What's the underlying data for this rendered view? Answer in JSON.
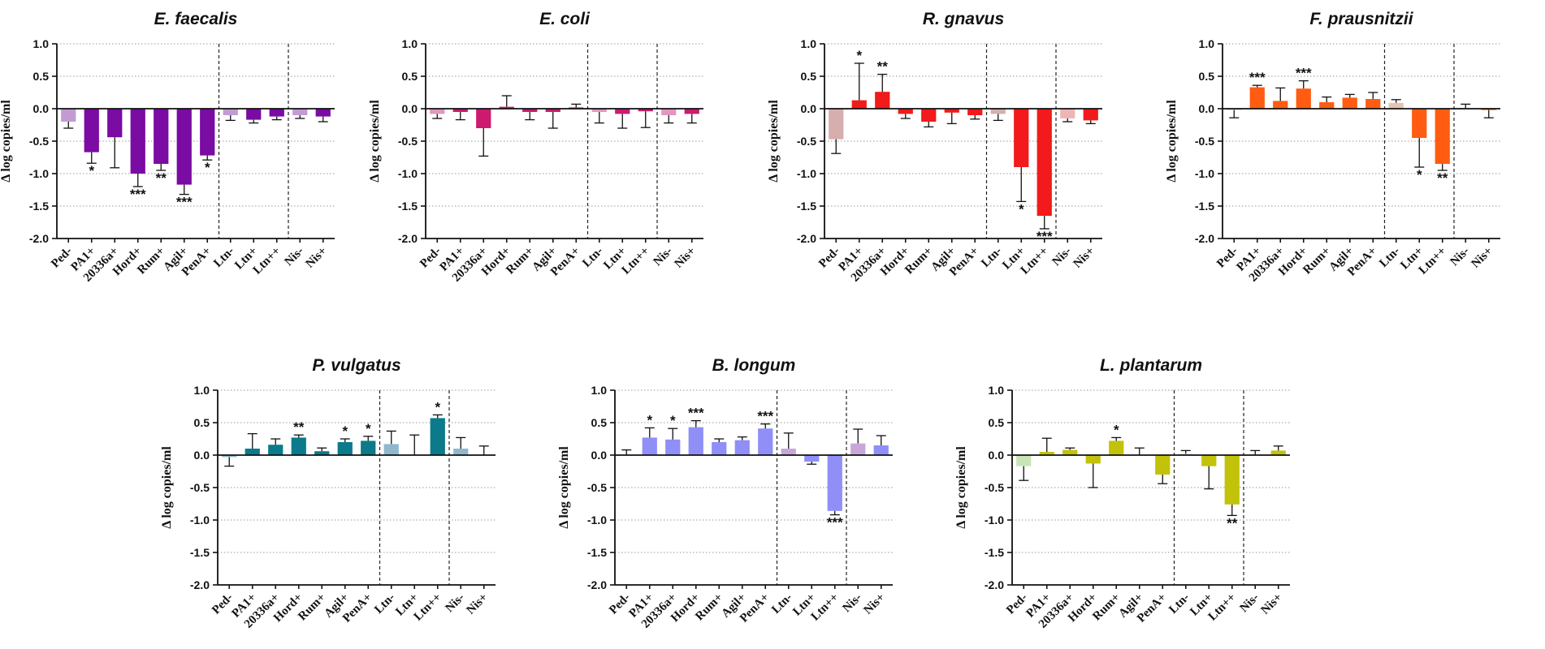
{
  "chart_data": [
    {
      "type": "bar",
      "title": "E. faecalis",
      "ylabel": "Δ log copies/ml",
      "ylim": [
        -2.0,
        1.0
      ],
      "yticks": [
        "1.0",
        "0.5",
        "0.0",
        "-0.5",
        "-1.0",
        "-1.5",
        "-2.0"
      ],
      "grid": true,
      "categories": [
        "Ped-",
        "PA1+",
        "20336a+",
        "Hord+",
        "Rum+",
        "Agil+",
        "PenA+",
        "Ltn-",
        "Ltn+",
        "Ltn++",
        "Nis-",
        "Nis+"
      ],
      "values": [
        -0.2,
        -0.67,
        -0.44,
        -1.0,
        -0.85,
        -1.17,
        -0.72,
        -0.1,
        -0.17,
        -0.12,
        -0.1,
        -0.12
      ],
      "errors": [
        0.1,
        0.17,
        0.47,
        0.2,
        0.1,
        0.15,
        0.07,
        0.08,
        0.05,
        0.05,
        0.05,
        0.08
      ],
      "significance": [
        "",
        "*",
        "",
        "***",
        "**",
        "***",
        "*",
        "",
        "",
        "",
        "",
        ""
      ],
      "colors": [
        "#c39bd3",
        "#7a0ba3",
        "#7a0ba3",
        "#7a0ba3",
        "#7a0ba3",
        "#7a0ba3",
        "#7a0ba3",
        "#c39bd3",
        "#7a0ba3",
        "#7a0ba3",
        "#c39bd3",
        "#7a0ba3"
      ],
      "separators_after": [
        "PenA+",
        "Ltn++"
      ]
    },
    {
      "type": "bar",
      "title": "E. coli",
      "ylabel": "Δ log copies/ml",
      "ylim": [
        -2.0,
        1.0
      ],
      "yticks": [
        "1.0",
        "0.5",
        "0.0",
        "-0.5",
        "-1.0",
        "-1.5",
        "-2.0"
      ],
      "grid": true,
      "categories": [
        "Ped-",
        "PA1+",
        "20336a+",
        "Hord+",
        "Rum+",
        "Agil+",
        "PenA+",
        "Ltn-",
        "Ltn+",
        "Ltn++",
        "Nis-",
        "Nis+"
      ],
      "values": [
        -0.08,
        -0.05,
        -0.3,
        0.03,
        -0.05,
        -0.05,
        0.02,
        -0.05,
        -0.08,
        -0.04,
        -0.1,
        -0.08
      ],
      "errors": [
        0.07,
        0.12,
        0.43,
        0.17,
        0.12,
        0.25,
        0.05,
        0.17,
        0.22,
        0.25,
        0.12,
        0.14
      ],
      "significance": [
        "",
        "",
        "",
        "",
        "",
        "",
        "",
        "",
        "",
        "",
        "",
        ""
      ],
      "colors": [
        "#e098bf",
        "#cc1b6e",
        "#cc1b6e",
        "#cc1b6e",
        "#cc1b6e",
        "#cc1b6e",
        "#cc1b6e",
        "#e098bf",
        "#cc1b6e",
        "#cc1b6e",
        "#e098bf",
        "#cc1b6e"
      ],
      "separators_after": [
        "PenA+",
        "Ltn++"
      ]
    },
    {
      "type": "bar",
      "title": "R. gnavus",
      "ylabel": "Δ log copies/ml",
      "ylim": [
        -2.0,
        1.0
      ],
      "yticks": [
        "1.0",
        "0.5",
        "0.0",
        "-0.5",
        "-1.0",
        "-1.5",
        "-2.0"
      ],
      "grid": true,
      "categories": [
        "Ped-",
        "PA1+",
        "20336a+",
        "Hord+",
        "Rum+",
        "Agil+",
        "PenA+",
        "Ltn-",
        "Ltn+",
        "Ltn++",
        "Nis-",
        "Nis+"
      ],
      "values": [
        -0.47,
        0.13,
        0.26,
        -0.08,
        -0.2,
        -0.06,
        -0.1,
        -0.08,
        -0.9,
        -1.65,
        -0.15,
        -0.18
      ],
      "errors": [
        0.22,
        0.57,
        0.27,
        0.07,
        0.08,
        0.17,
        0.06,
        0.1,
        0.53,
        0.2,
        0.05,
        0.05
      ],
      "significance": [
        "",
        "*",
        "**",
        "",
        "",
        "",
        "",
        "",
        "*",
        "***",
        "",
        ""
      ],
      "colors": [
        "#d6aeae",
        "#f21a1a",
        "#f21a1a",
        "#f21a1a",
        "#f21a1a",
        "#f21a1a",
        "#f21a1a",
        "#d6aeae",
        "#f21a1a",
        "#f21a1a",
        "#efb5b5",
        "#f21a1a"
      ],
      "separators_after": [
        "PenA+",
        "Ltn++"
      ]
    },
    {
      "type": "bar",
      "title": "F. prausnitzii",
      "ylabel": "Δ log copies/ml",
      "ylim": [
        -2.0,
        1.0
      ],
      "yticks": [
        "1.0",
        "0.5",
        "0.0",
        "-0.5",
        "-1.0",
        "-1.5",
        "-2.0"
      ],
      "grid": true,
      "categories": [
        "Ped-",
        "PA1+",
        "20336a+",
        "Hord+",
        "Rum+",
        "Agil+",
        "PenA+",
        "Ltn-",
        "Ltn+",
        "Ltn++",
        "Nis-",
        "Nis+"
      ],
      "values": [
        -0.02,
        0.33,
        0.12,
        0.31,
        0.1,
        0.17,
        0.15,
        0.09,
        -0.45,
        -0.85,
        0.01,
        -0.02
      ],
      "errors": [
        0.12,
        0.03,
        0.2,
        0.12,
        0.08,
        0.05,
        0.1,
        0.05,
        0.45,
        0.1,
        0.06,
        0.12
      ],
      "significance": [
        "",
        "***",
        "",
        "***",
        "",
        "",
        "",
        "",
        "*",
        "**",
        "",
        ""
      ],
      "colors": [
        "#f3c6a8",
        "#ff5c12",
        "#ff5c12",
        "#ff5c12",
        "#ff5c12",
        "#ff5c12",
        "#ff5c12",
        "#e8c4b0",
        "#ff5c12",
        "#ff5c12",
        "#f3c6a8",
        "#ff5c12"
      ],
      "separators_after": [
        "PenA+",
        "Ltn++"
      ]
    },
    {
      "type": "bar",
      "title": "P. vulgatus",
      "ylabel": "Δ log copies/ml",
      "ylim": [
        -2.0,
        1.0
      ],
      "yticks": [
        "1.0",
        "0.5",
        "0.0",
        "-0.5",
        "-1.0",
        "-1.5",
        "-2.0"
      ],
      "grid": true,
      "categories": [
        "Ped-",
        "PA1+",
        "20336a+",
        "Hord+",
        "Rum+",
        "Agil+",
        "PenA+",
        "Ltn-",
        "Ltn+",
        "Ltn++",
        "Nis-",
        "Nis+"
      ],
      "values": [
        -0.03,
        0.1,
        0.16,
        0.27,
        0.06,
        0.2,
        0.22,
        0.17,
        0.0,
        0.57,
        0.1,
        0.0
      ],
      "errors": [
        0.14,
        0.23,
        0.09,
        0.04,
        0.05,
        0.05,
        0.07,
        0.2,
        0.31,
        0.05,
        0.17,
        0.14
      ],
      "significance": [
        "",
        "",
        "",
        "**",
        "",
        "*",
        "*",
        "",
        "",
        "*",
        "",
        ""
      ],
      "colors": [
        "#8fb8cc",
        "#0b7a8a",
        "#0b7a8a",
        "#0b7a8a",
        "#0b7a8a",
        "#0b7a8a",
        "#0b7a8a",
        "#8fb8cc",
        "#0b7a8a",
        "#0b7a8a",
        "#8fb8cc",
        "#0b7a8a"
      ],
      "separators_after": [
        "PenA+",
        "Ltn++"
      ]
    },
    {
      "type": "bar",
      "title": "B. longum",
      "ylabel": "Δ log copies/ml",
      "ylim": [
        -2.0,
        1.0
      ],
      "yticks": [
        "1.0",
        "0.5",
        "0.0",
        "-0.5",
        "-1.0",
        "-1.5",
        "-2.0"
      ],
      "grid": true,
      "categories": [
        "Ped-",
        "PA1+",
        "20336a+",
        "Hord+",
        "Rum+",
        "Agil+",
        "PenA+",
        "Ltn-",
        "Ltn+",
        "Ltn++",
        "Nis-",
        "Nis+"
      ],
      "values": [
        0.0,
        0.27,
        0.24,
        0.43,
        0.2,
        0.23,
        0.41,
        0.1,
        -0.1,
        -0.86,
        0.18,
        0.15
      ],
      "errors": [
        0.08,
        0.15,
        0.17,
        0.1,
        0.05,
        0.05,
        0.07,
        0.24,
        0.04,
        0.06,
        0.22,
        0.15
      ],
      "significance": [
        "",
        "*",
        "*",
        "***",
        "",
        "",
        "***",
        "",
        "",
        "***",
        "",
        ""
      ],
      "colors": [
        "#c9a6d8",
        "#8f8ff7",
        "#8f8ff7",
        "#8f8ff7",
        "#8f8ff7",
        "#8f8ff7",
        "#8f8ff7",
        "#c9a6d8",
        "#8f8ff7",
        "#8f8ff7",
        "#c9a6d8",
        "#8f8ff7"
      ],
      "separators_after": [
        "PenA+",
        "Ltn++"
      ]
    },
    {
      "type": "bar",
      "title": "L. plantarum",
      "ylabel": "Δ log copies/ml",
      "ylim": [
        -2.0,
        1.0
      ],
      "yticks": [
        "1.0",
        "0.5",
        "0.0",
        "-0.5",
        "-1.0",
        "-1.5",
        "-2.0"
      ],
      "grid": true,
      "categories": [
        "Ped-",
        "PA1+",
        "20336a+",
        "Hord+",
        "Rum+",
        "Agil+",
        "PenA+",
        "Ltn-",
        "Ltn+",
        "Ltn++",
        "Nis-",
        "Nis+"
      ],
      "values": [
        -0.17,
        0.05,
        0.08,
        -0.13,
        0.22,
        0.0,
        -0.3,
        0.02,
        -0.17,
        -0.76,
        0.01,
        0.07
      ],
      "errors": [
        0.22,
        0.21,
        0.03,
        0.37,
        0.05,
        0.11,
        0.14,
        0.05,
        0.35,
        0.17,
        0.06,
        0.07
      ],
      "significance": [
        "",
        "",
        "",
        "",
        "*",
        "",
        "",
        "",
        "",
        "**",
        "",
        ""
      ],
      "colors": [
        "#c8e6b4",
        "#c2c20a",
        "#c2c20a",
        "#c2c20a",
        "#c2c20a",
        "#c2c20a",
        "#c2c20a",
        "#c8e6b4",
        "#c2c20a",
        "#c2c20a",
        "#c8e6b4",
        "#c2c20a"
      ],
      "separators_after": [
        "PenA+",
        "Ltn++"
      ]
    }
  ]
}
